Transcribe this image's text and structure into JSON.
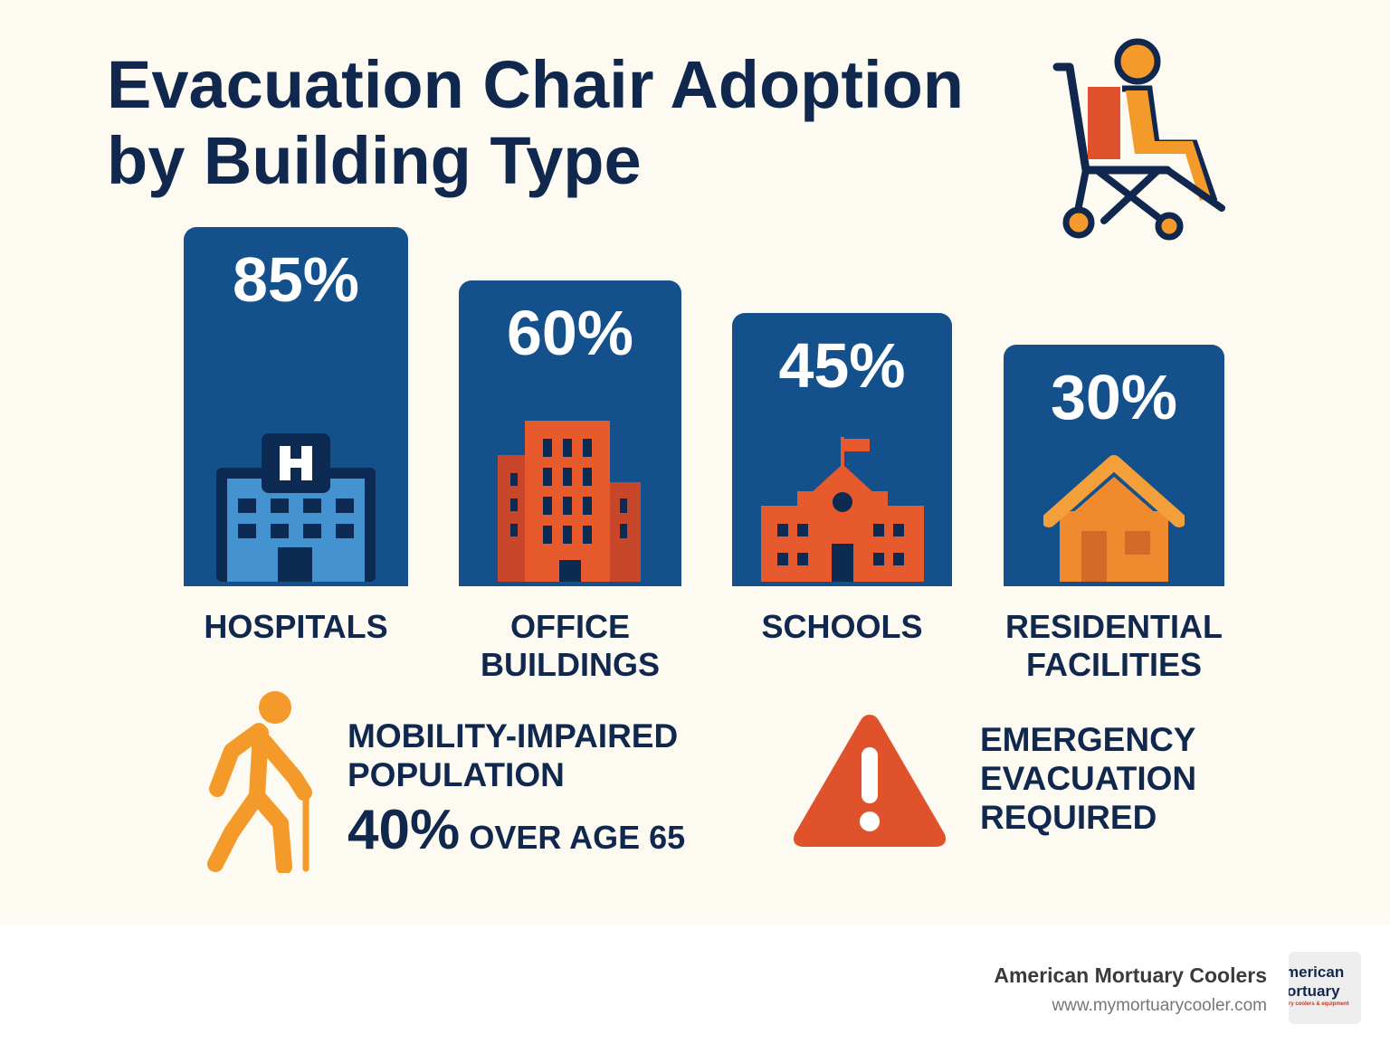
{
  "title_line1": "Evacuation Chair Adoption",
  "title_line2": "by Building Type",
  "chart_data": {
    "type": "bar",
    "title": "Evacuation Chair Adoption by Building Type",
    "categories": [
      "HOSPITALS",
      "OFFICE BUILDINGS",
      "SCHOOLS",
      "RESIDENTIAL FACILITIES"
    ],
    "category_lines": [
      [
        "HOSPITALS"
      ],
      [
        "OFFICE",
        "BUILDINGS"
      ],
      [
        "SCHOOLS"
      ],
      [
        "RESIDENTIAL",
        "FACILITIES"
      ]
    ],
    "values": [
      85,
      60,
      45,
      30
    ],
    "labels": [
      "85%",
      "60%",
      "45%",
      "30%"
    ],
    "unit": "%",
    "bar_color": "#14508c"
  },
  "stats": {
    "mobility_line1": "MOBILITY-IMPAIRED",
    "mobility_line2": "POPULATION",
    "mobility_value": "40%",
    "mobility_suffix": "OVER AGE 65",
    "emergency_line1": "EMERGENCY",
    "emergency_line2": "EVACUATION",
    "emergency_line3": "REQUIRED"
  },
  "footer": {
    "brand": "American Mortuary Coolers",
    "url": "www.mymortuarycooler.com",
    "logo_text": "American Mortuary - mortuary coolers & equipment - cool way to comply"
  },
  "colors": {
    "navy": "#10284d",
    "blue": "#14508c",
    "orange": "#f39a2b",
    "red": "#e0522b"
  }
}
